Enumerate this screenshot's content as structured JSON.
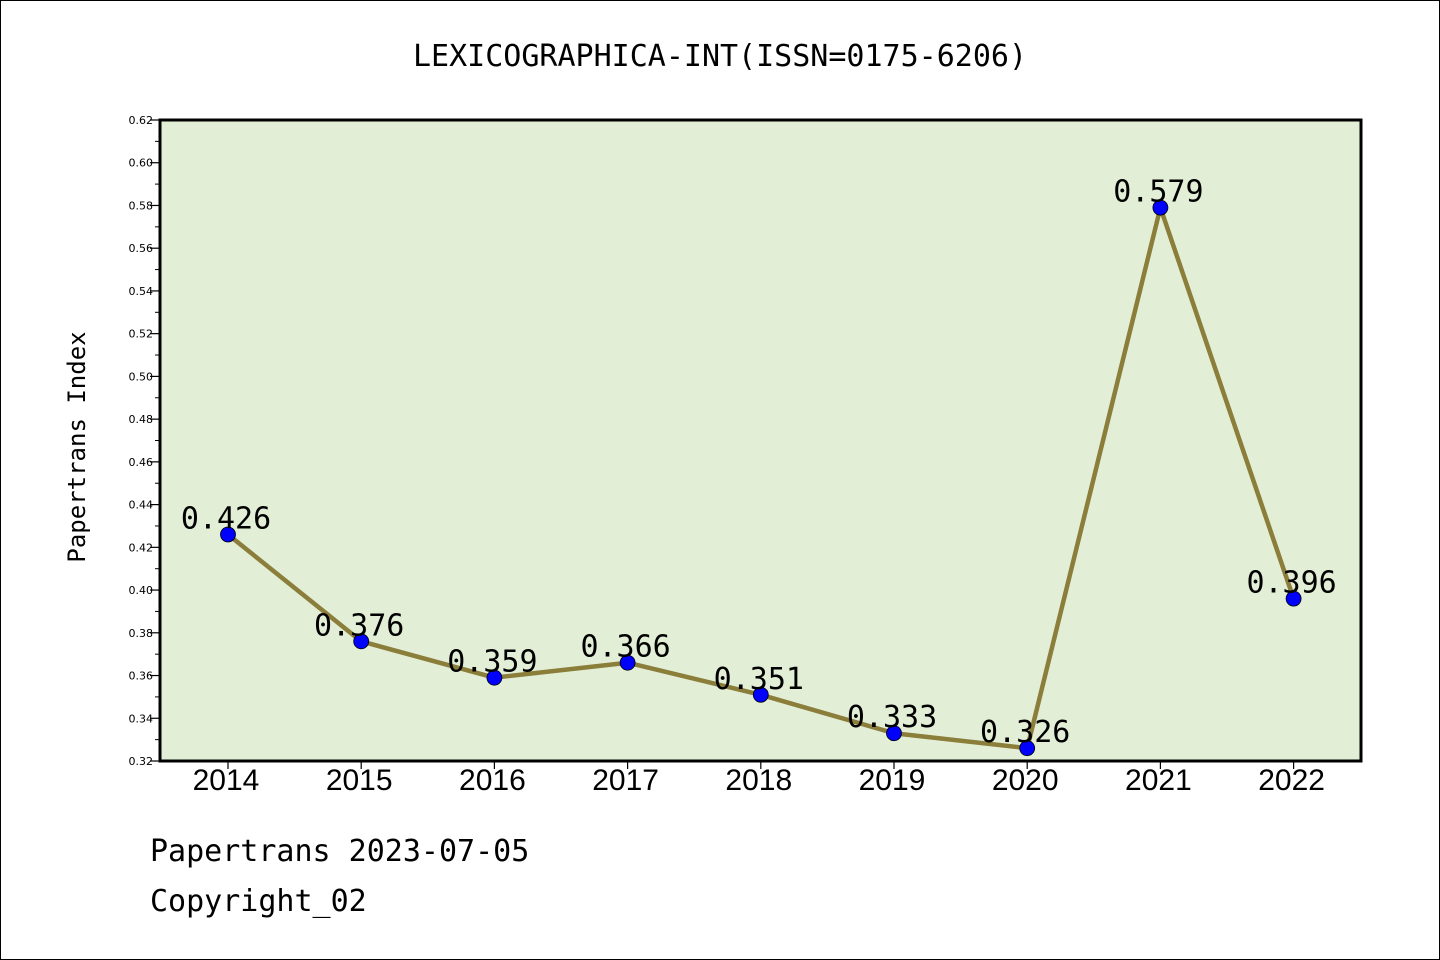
{
  "chart_data": {
    "type": "line",
    "title": "LEXICOGRAPHICA-INT(ISSN=0175-6206)",
    "xlabel": "",
    "ylabel": "Papertrans Index",
    "categories": [
      "2014",
      "2015",
      "2016",
      "2017",
      "2018",
      "2019",
      "2020",
      "2021",
      "2022"
    ],
    "series": [
      {
        "values": [
          0.426,
          0.376,
          0.359,
          0.366,
          0.351,
          0.333,
          0.326,
          0.579,
          0.396
        ],
        "labels": [
          "0.426",
          "0.376",
          "0.359",
          "0.366",
          "0.351",
          "0.333",
          "0.326",
          "0.579",
          "0.396"
        ],
        "line_color": "#8b7d3a",
        "marker_color": "#0000ff"
      }
    ],
    "ylim": [
      0.32,
      0.62
    ],
    "yticks": [
      "0.32",
      "0.34",
      "0.36",
      "0.38",
      "0.40",
      "0.42",
      "0.44",
      "0.46",
      "0.48",
      "0.50",
      "0.52",
      "0.54",
      "0.56",
      "0.58",
      "0.60",
      "0.62"
    ],
    "grid": false,
    "plot_background": "#e2efd6"
  },
  "footer": {
    "line1": "Papertrans 2023-07-05",
    "line2": "Copyright_02"
  }
}
